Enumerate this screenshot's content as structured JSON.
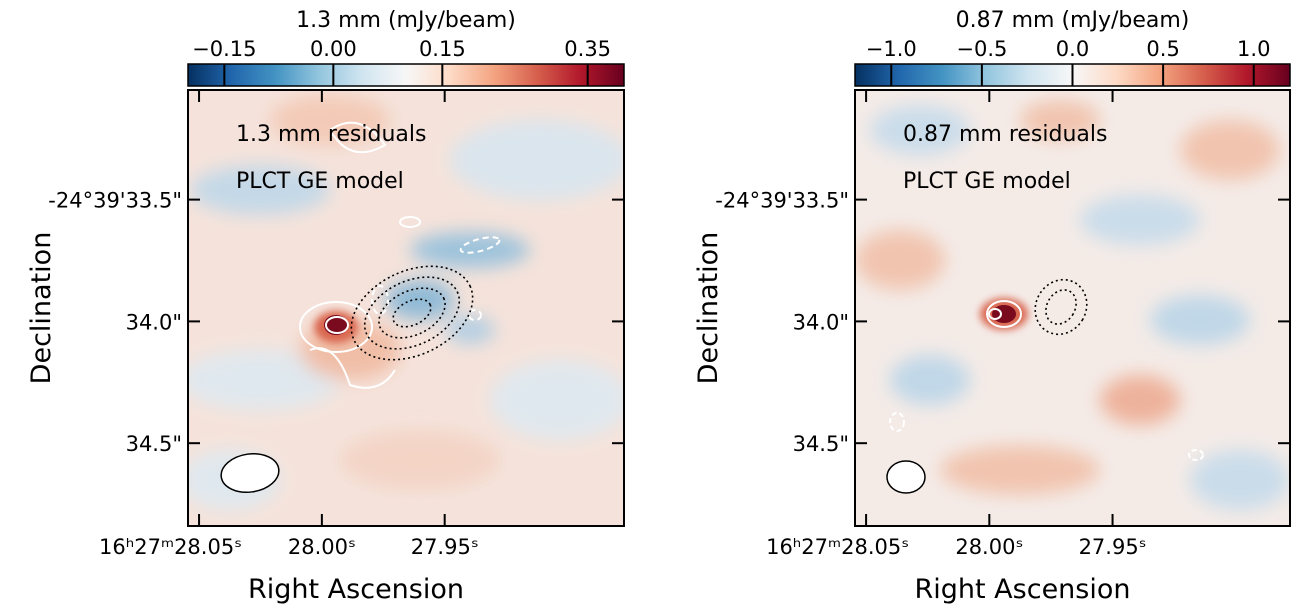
{
  "chart_data": [
    {
      "type": "image",
      "colormap": "RdBu_r",
      "colorbar_label": "1.3 mm (mJy/beam)",
      "clim": [
        -0.2,
        0.4
      ],
      "cticks": [
        {
          "value": -0.15,
          "label": "−0.15"
        },
        {
          "value": 0,
          "label": "0.00"
        },
        0.15,
        0.35
      ],
      "annotations": [
        "1.3 mm residuals",
        "PLCT GE model"
      ],
      "xlabel": "Right Ascension",
      "ylabel": "Declination",
      "xlim": [
        28.0545,
        27.877
      ],
      "xticks": [
        {
          "value": 28.05,
          "label": "16ʰ27ᵐ28.05ˢ"
        },
        {
          "value": 28.0,
          "label": "28.00ˢ"
        },
        {
          "value": 27.95,
          "label": "27.95ˢ"
        }
      ],
      "ylim": [
        34.84,
        33.05
      ],
      "yticks": [
        {
          "value": 33.5,
          "label": "-24°39'33.5\""
        },
        {
          "value": 34.0,
          "label": "34.0\""
        },
        {
          "value": 34.5,
          "label": "34.5\""
        }
      ]
    },
    {
      "type": "image",
      "colormap": "RdBu_r",
      "colorbar_label": "0.87 mm (mJy/beam)",
      "clim": [
        -1.2,
        1.2
      ],
      "cticks": [
        {
          "value": -1.0,
          "label": "−1.0"
        },
        {
          "value": -0.5,
          "label": "−0.5"
        },
        {
          "value": 0,
          "label": "0.0"
        },
        0.5,
        {
          "value": 1.0,
          "label": "1.0"
        }
      ],
      "annotations": [
        "0.87 mm residuals",
        "PLCT GE model"
      ],
      "xlabel": "Right Ascension",
      "ylabel": "Declination",
      "xlim": [
        28.0545,
        27.878
      ],
      "xticks": [
        {
          "value": 28.05,
          "label": "16ʰ27ᵐ28.05ˢ"
        },
        {
          "value": 28.0,
          "label": "28.00ˢ"
        },
        {
          "value": 27.95,
          "label": "27.95ˢ"
        }
      ],
      "ylim": [
        34.84,
        33.05
      ],
      "yticks": [
        {
          "value": 33.5,
          "label": "-24°39'33.5\""
        },
        {
          "value": 34.0,
          "label": "34.0\""
        },
        {
          "value": 34.5,
          "label": "34.5\""
        }
      ]
    }
  ]
}
